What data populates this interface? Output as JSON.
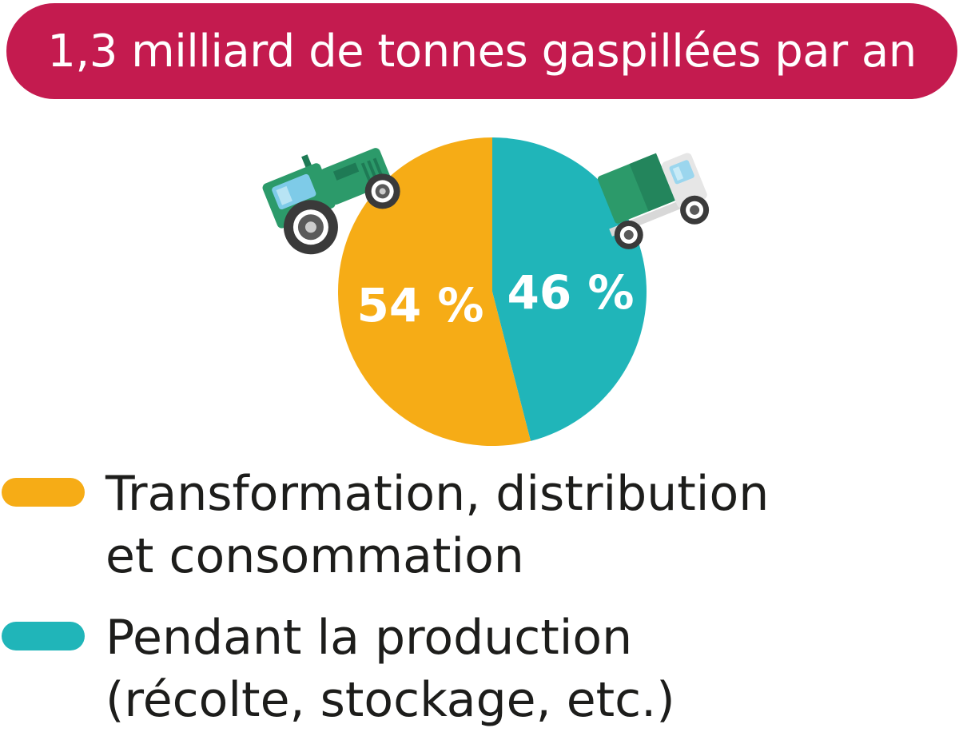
{
  "header": {
    "title": "1,3 milliard de tonnes gaspillées par an",
    "title_bg_color": "#c41b4f"
  },
  "chart_data": {
    "type": "pie",
    "title": "1,3 milliard de tonnes gaspillées par an",
    "unit": "%",
    "series": [
      {
        "key": "transformation",
        "value": 54,
        "label": "54 %",
        "color": "#f6ac16",
        "legend_lines": [
          "Transformation, distribution",
          "et consommation"
        ]
      },
      {
        "key": "production",
        "value": 46,
        "label": "46 %",
        "color": "#20b5b9",
        "legend_lines": [
          "Pendant la production",
          "(récolte, stockage, etc.)"
        ]
      }
    ],
    "legend_placement": "bottom-left"
  },
  "illustrations": {
    "left_icon": "tractor-icon",
    "right_icon": "truck-icon"
  }
}
